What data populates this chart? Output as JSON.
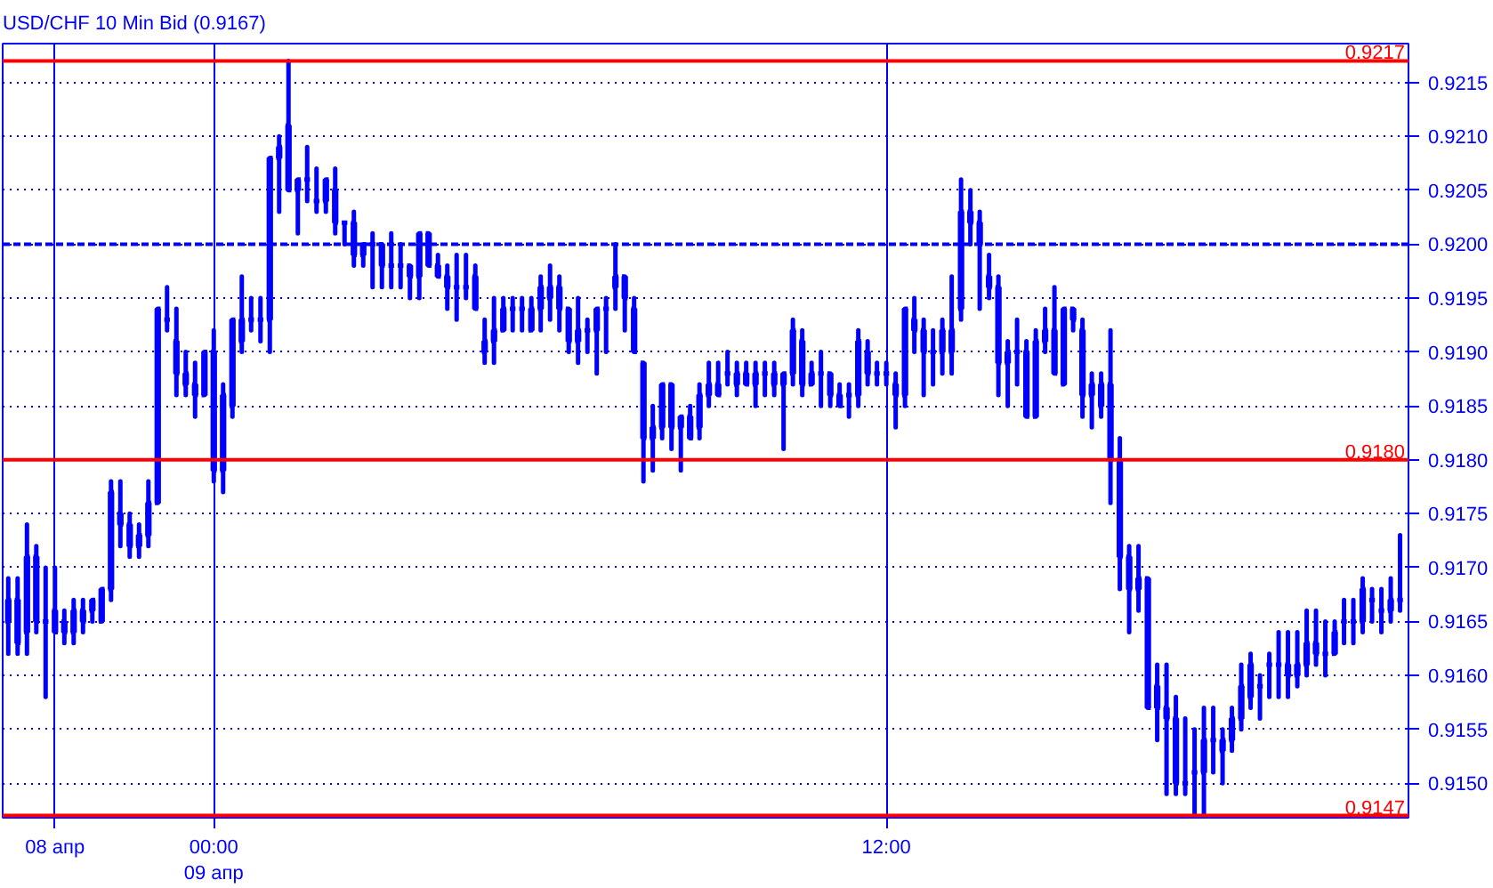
{
  "chart_data": {
    "type": "candlestick",
    "title": "USD/CHF 10 Min Bid (0.9167)",
    "color": "#0000ff",
    "categories": [
      null,
      null,
      null,
      null,
      null,
      "08 апр",
      null,
      null,
      null,
      null,
      null,
      null,
      null,
      null,
      null,
      null,
      null,
      null,
      null,
      null,
      null,
      null,
      "00:00\n09 апр",
      null,
      null,
      null,
      null,
      null,
      null,
      null,
      null,
      null,
      null,
      null,
      null,
      null,
      null,
      null,
      null,
      null,
      null,
      null,
      null,
      null,
      null,
      null,
      null,
      null,
      null,
      null,
      null,
      null,
      null,
      null,
      null,
      null,
      null,
      null,
      null,
      null,
      null,
      null,
      null,
      null,
      null,
      null,
      null,
      null,
      null,
      null,
      null,
      null,
      null,
      null,
      null,
      null,
      null,
      null,
      null,
      null,
      null,
      null,
      null,
      null,
      null,
      null,
      null,
      null,
      null,
      null,
      null,
      null,
      null,
      null,
      "12:00",
      null,
      null,
      null,
      null,
      null,
      null,
      null,
      null,
      null,
      null,
      null,
      null,
      null,
      null,
      null,
      null,
      null,
      null,
      null,
      null,
      null,
      null,
      null,
      null,
      null,
      null,
      null,
      null,
      null,
      null,
      null,
      null,
      null,
      null,
      null,
      null,
      null,
      null,
      null,
      null,
      null,
      null,
      null,
      null,
      null,
      null,
      null,
      null,
      null,
      null,
      null,
      null,
      null,
      null,
      null
    ],
    "ohlc": [
      [
        0.9165,
        0.9169,
        0.9162,
        0.9167
      ],
      [
        0.9167,
        0.9169,
        0.9162,
        0.9163
      ],
      [
        0.9164,
        0.9174,
        0.9162,
        0.9171
      ],
      [
        0.9171,
        0.9172,
        0.9164,
        0.9165
      ],
      [
        0.9165,
        0.917,
        0.9158,
        0.9165
      ],
      [
        0.9166,
        0.917,
        0.9164,
        0.9164
      ],
      [
        0.9165,
        0.9166,
        0.9163,
        0.9164
      ],
      [
        0.9164,
        0.9167,
        0.9163,
        0.9166
      ],
      [
        0.9166,
        0.9167,
        0.9164,
        0.9165
      ],
      [
        0.9166,
        0.9167,
        0.9165,
        0.9167
      ],
      [
        0.9165,
        0.9168,
        0.9165,
        0.9168
      ],
      [
        0.9168,
        0.9178,
        0.9167,
        0.9177
      ],
      [
        0.9175,
        0.9178,
        0.9172,
        0.9174
      ],
      [
        0.9174,
        0.9175,
        0.9171,
        0.9172
      ],
      [
        0.9172,
        0.9174,
        0.9171,
        0.9173
      ],
      [
        0.9173,
        0.9178,
        0.9172,
        0.9176
      ],
      [
        0.9176,
        0.9194,
        0.9176,
        0.9194
      ],
      [
        0.9193,
        0.9196,
        0.9192,
        0.9193
      ],
      [
        0.9191,
        0.9194,
        0.9186,
        0.9188
      ],
      [
        0.9187,
        0.919,
        0.9186,
        0.9188
      ],
      [
        0.9187,
        0.9189,
        0.9184,
        0.9186
      ],
      [
        0.9186,
        0.919,
        0.9186,
        0.919
      ],
      [
        0.919,
        0.9192,
        0.9178,
        0.9179
      ],
      [
        0.9179,
        0.9187,
        0.9177,
        0.9186
      ],
      [
        0.9185,
        0.9193,
        0.9184,
        0.9193
      ],
      [
        0.9191,
        0.9197,
        0.919,
        0.9193
      ],
      [
        0.9193,
        0.9195,
        0.9192,
        0.9193
      ],
      [
        0.9193,
        0.9195,
        0.9191,
        0.9193
      ],
      [
        0.9193,
        0.9208,
        0.919,
        0.9208
      ],
      [
        0.9208,
        0.921,
        0.9203,
        0.9209
      ],
      [
        0.9211,
        0.9217,
        0.9205,
        0.9205
      ],
      [
        0.9205,
        0.9206,
        0.9201,
        0.9206
      ],
      [
        0.9206,
        0.9209,
        0.9204,
        0.9206
      ],
      [
        0.9204,
        0.9207,
        0.9203,
        0.9204
      ],
      [
        0.9204,
        0.9206,
        0.9203,
        0.9206
      ],
      [
        0.9205,
        0.9207,
        0.9201,
        0.9202
      ],
      [
        0.9202,
        0.9202,
        0.92,
        0.9202
      ],
      [
        0.9202,
        0.9203,
        0.9198,
        0.9199
      ],
      [
        0.9199,
        0.92,
        0.9198,
        0.92
      ],
      [
        0.92,
        0.9201,
        0.9196,
        0.92
      ],
      [
        0.92,
        0.92,
        0.9196,
        0.9198
      ],
      [
        0.9198,
        0.9201,
        0.9196,
        0.9198
      ],
      [
        0.9198,
        0.92,
        0.9196,
        0.9198
      ],
      [
        0.9198,
        0.9198,
        0.9195,
        0.9197
      ],
      [
        0.9197,
        0.9201,
        0.9195,
        0.9201
      ],
      [
        0.9201,
        0.9201,
        0.9198,
        0.9198
      ],
      [
        0.9198,
        0.9199,
        0.9197,
        0.9197
      ],
      [
        0.9197,
        0.9198,
        0.9194,
        0.9196
      ],
      [
        0.9196,
        0.9199,
        0.9193,
        0.9196
      ],
      [
        0.9196,
        0.9199,
        0.9195,
        0.9196
      ],
      [
        0.9197,
        0.9198,
        0.9194,
        0.9194
      ],
      [
        0.919,
        0.9193,
        0.9189,
        0.9191
      ],
      [
        0.9191,
        0.9195,
        0.9189,
        0.9192
      ],
      [
        0.9192,
        0.9195,
        0.9192,
        0.9194
      ],
      [
        0.9194,
        0.9195,
        0.9192,
        0.9194
      ],
      [
        0.9194,
        0.9195,
        0.9192,
        0.9194
      ],
      [
        0.9192,
        0.9195,
        0.9192,
        0.9194
      ],
      [
        0.9194,
        0.9197,
        0.9192,
        0.9196
      ],
      [
        0.9195,
        0.9198,
        0.9193,
        0.9196
      ],
      [
        0.9196,
        0.9197,
        0.9192,
        0.9194
      ],
      [
        0.9194,
        0.9194,
        0.919,
        0.9191
      ],
      [
        0.9191,
        0.9195,
        0.9189,
        0.9192
      ],
      [
        0.9192,
        0.9193,
        0.919,
        0.9192
      ],
      [
        0.9192,
        0.9194,
        0.9188,
        0.9194
      ],
      [
        0.9194,
        0.9195,
        0.919,
        0.9194
      ],
      [
        0.9196,
        0.92,
        0.9194,
        0.9197
      ],
      [
        0.9197,
        0.9197,
        0.9192,
        0.9195
      ],
      [
        0.9194,
        0.9195,
        0.919,
        0.919
      ],
      [
        0.9189,
        0.9189,
        0.9178,
        0.9182
      ],
      [
        0.9182,
        0.9185,
        0.9179,
        0.9183
      ],
      [
        0.9183,
        0.9187,
        0.9182,
        0.9187
      ],
      [
        0.9187,
        0.9187,
        0.9181,
        0.9183
      ],
      [
        0.9183,
        0.9184,
        0.9179,
        0.9184
      ],
      [
        0.9184,
        0.9185,
        0.9182,
        0.9182
      ],
      [
        0.9183,
        0.9187,
        0.9182,
        0.9186
      ],
      [
        0.9186,
        0.9189,
        0.9185,
        0.9187
      ],
      [
        0.9187,
        0.9189,
        0.9186,
        0.9186
      ],
      [
        0.9188,
        0.919,
        0.9187,
        0.9188
      ],
      [
        0.9187,
        0.9189,
        0.9186,
        0.9188
      ],
      [
        0.9188,
        0.9189,
        0.9187,
        0.9187
      ],
      [
        0.9187,
        0.9189,
        0.9185,
        0.9188
      ],
      [
        0.9188,
        0.9189,
        0.9186,
        0.9188
      ],
      [
        0.9187,
        0.9189,
        0.9186,
        0.9188
      ],
      [
        0.9187,
        0.9188,
        0.9181,
        0.9188
      ],
      [
        0.9188,
        0.9193,
        0.9187,
        0.9192
      ],
      [
        0.9191,
        0.9192,
        0.9186,
        0.9187
      ],
      [
        0.9187,
        0.9189,
        0.9187,
        0.9188
      ],
      [
        0.9188,
        0.919,
        0.9185,
        0.9188
      ],
      [
        0.9188,
        0.9188,
        0.9185,
        0.9186
      ],
      [
        0.9186,
        0.9187,
        0.9185,
        0.9185
      ],
      [
        0.9186,
        0.9187,
        0.9184,
        0.9186
      ],
      [
        0.9186,
        0.9192,
        0.9185,
        0.9191
      ],
      [
        0.919,
        0.9191,
        0.9187,
        0.9188
      ],
      [
        0.9188,
        0.9189,
        0.9187,
        0.9188
      ],
      [
        0.9188,
        0.9189,
        0.9187,
        0.9188
      ],
      [
        0.9187,
        0.9188,
        0.9183,
        0.9186
      ],
      [
        0.9186,
        0.9194,
        0.9185,
        0.9194
      ],
      [
        0.9193,
        0.9195,
        0.919,
        0.9192
      ],
      [
        0.9192,
        0.9193,
        0.9186,
        0.919
      ],
      [
        0.919,
        0.9192,
        0.9187,
        0.919
      ],
      [
        0.919,
        0.9193,
        0.9188,
        0.9192
      ],
      [
        0.919,
        0.9197,
        0.9188,
        0.9192
      ],
      [
        0.9194,
        0.9206,
        0.9193,
        0.9203
      ],
      [
        0.9203,
        0.9205,
        0.92,
        0.9202
      ],
      [
        0.9202,
        0.9203,
        0.9194,
        0.92
      ],
      [
        0.9197,
        0.9199,
        0.9195,
        0.9196
      ],
      [
        0.9196,
        0.9197,
        0.9186,
        0.9189
      ],
      [
        0.9189,
        0.9191,
        0.9185,
        0.919
      ],
      [
        0.919,
        0.9193,
        0.9187,
        0.919
      ],
      [
        0.919,
        0.9191,
        0.9184,
        0.9184
      ],
      [
        0.9184,
        0.9192,
        0.9184,
        0.9191
      ],
      [
        0.9191,
        0.9194,
        0.919,
        0.9192
      ],
      [
        0.9192,
        0.9196,
        0.9188,
        0.9188
      ],
      [
        0.9187,
        0.9194,
        0.9187,
        0.9194
      ],
      [
        0.9194,
        0.9194,
        0.9192,
        0.9193
      ],
      [
        0.9192,
        0.9193,
        0.9184,
        0.9186
      ],
      [
        0.9186,
        0.9188,
        0.9183,
        0.9187
      ],
      [
        0.9185,
        0.9188,
        0.9184,
        0.9187
      ],
      [
        0.9187,
        0.9192,
        0.9176,
        0.918
      ],
      [
        0.918,
        0.9182,
        0.9168,
        0.9171
      ],
      [
        0.9171,
        0.9172,
        0.9164,
        0.9168
      ],
      [
        0.9168,
        0.9172,
        0.9166,
        0.9169
      ],
      [
        0.9169,
        0.9169,
        0.9157,
        0.9157
      ],
      [
        0.9159,
        0.9161,
        0.9154,
        0.9157
      ],
      [
        0.9157,
        0.9161,
        0.9149,
        0.9156
      ],
      [
        0.9156,
        0.9158,
        0.9149,
        0.915
      ],
      [
        0.915,
        0.9156,
        0.9149,
        0.915
      ],
      [
        0.9151,
        0.9155,
        0.9147,
        0.9151
      ],
      [
        0.9151,
        0.9157,
        0.9147,
        0.9154
      ],
      [
        0.9154,
        0.9157,
        0.9151,
        0.9154
      ],
      [
        0.9153,
        0.9155,
        0.915,
        0.9154
      ],
      [
        0.9154,
        0.9157,
        0.9153,
        0.9156
      ],
      [
        0.9156,
        0.9161,
        0.9155,
        0.9159
      ],
      [
        0.9158,
        0.9162,
        0.9157,
        0.9161
      ],
      [
        0.9159,
        0.916,
        0.9156,
        0.9159
      ],
      [
        0.9161,
        0.9162,
        0.9158,
        0.9161
      ],
      [
        0.9161,
        0.9164,
        0.9158,
        0.9161
      ],
      [
        0.9161,
        0.9164,
        0.9158,
        0.916
      ],
      [
        0.916,
        0.9164,
        0.9159,
        0.9161
      ],
      [
        0.9161,
        0.9166,
        0.916,
        0.9163
      ],
      [
        0.9163,
        0.9166,
        0.9161,
        0.9162
      ],
      [
        0.9162,
        0.9165,
        0.916,
        0.9162
      ],
      [
        0.9162,
        0.9165,
        0.9162,
        0.9164
      ],
      [
        0.9165,
        0.9167,
        0.9163,
        0.9165
      ],
      [
        0.9165,
        0.9167,
        0.9163,
        0.9165
      ],
      [
        0.9165,
        0.9169,
        0.9164,
        0.9168
      ],
      [
        0.9167,
        0.9168,
        0.9165,
        0.9167
      ],
      [
        0.9166,
        0.9168,
        0.9164,
        0.9166
      ],
      [
        0.9166,
        0.9169,
        0.9165,
        0.9167
      ],
      [
        0.9167,
        0.9173,
        0.9166,
        0.9167
      ]
    ],
    "ylim": [
      0.91468,
      0.92186
    ],
    "yticks": [
      {
        "value": 0.915,
        "label": "0.9150"
      },
      {
        "value": 0.9155,
        "label": "0.9155"
      },
      {
        "value": 0.916,
        "label": "0.9160"
      },
      {
        "value": 0.9165,
        "label": "0.9165"
      },
      {
        "value": 0.917,
        "label": "0.9170"
      },
      {
        "value": 0.9175,
        "label": "0.9175"
      },
      {
        "value": 0.918,
        "label": "0.9180"
      },
      {
        "value": 0.9185,
        "label": "0.9185"
      },
      {
        "value": 0.919,
        "label": "0.9190"
      },
      {
        "value": 0.9195,
        "label": "0.9195"
      },
      {
        "value": 0.92,
        "label": "0.9200"
      },
      {
        "value": 0.9205,
        "label": "0.9205"
      },
      {
        "value": 0.921,
        "label": "0.9210"
      },
      {
        "value": 0.9215,
        "label": "0.9215"
      }
    ],
    "grid": true,
    "ref_lines": [
      {
        "axis": "y",
        "value": 0.9217,
        "label": "0.9217",
        "color": "#ff0000",
        "line_style": "solid"
      },
      {
        "axis": "y",
        "value": 0.918,
        "label": "0.9180",
        "color": "#ff0000",
        "line_style": "solid"
      },
      {
        "axis": "y",
        "value": 0.9147,
        "label": "0.9147",
        "color": "#ff0000",
        "line_style": "solid"
      },
      {
        "axis": "y",
        "value": 0.92,
        "label": null,
        "color": "#0000ff",
        "line_style": "dashed"
      }
    ]
  }
}
